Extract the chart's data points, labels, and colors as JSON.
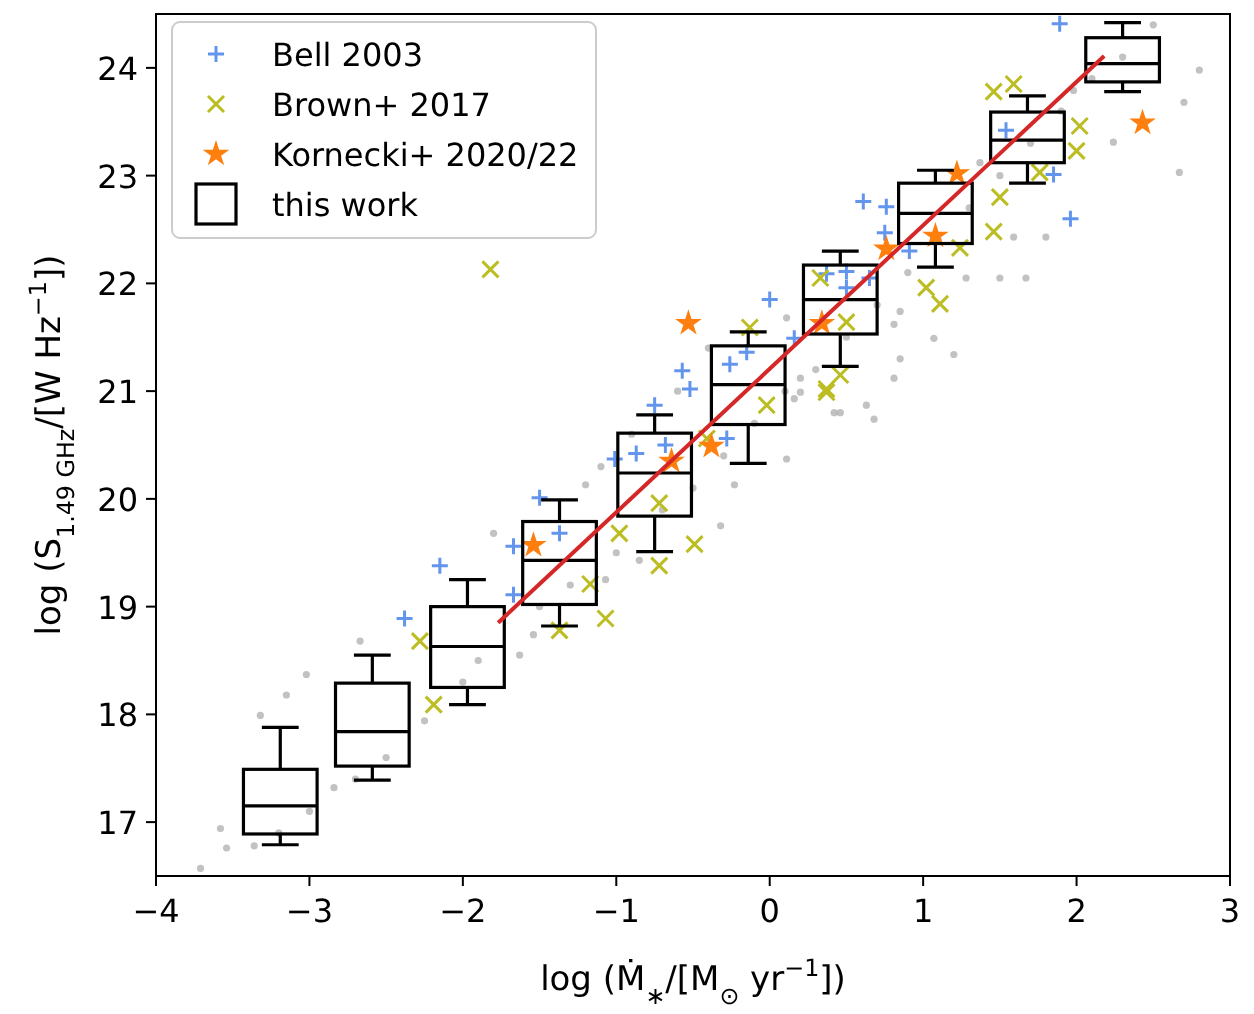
{
  "chart_data": {
    "type": "scatter",
    "xlabel": "log (Ṁ$_{∗}$/[M$_{⊙}$ yr$^{−1}$])",
    "ylabel": "log (S$_{1.49 GHz}$/[W Hz$^{−1}$])",
    "xlim": [
      -4,
      3
    ],
    "ylim": [
      16.5,
      24.5
    ],
    "xticks": [
      {
        "value": -4,
        "label": "−4"
      },
      {
        "value": -3,
        "label": "−3"
      },
      {
        "value": -2,
        "label": "−2"
      },
      {
        "value": -1,
        "label": "−1"
      },
      0,
      1,
      2,
      3
    ],
    "yticks": [
      17,
      18,
      19,
      20,
      21,
      22,
      23,
      24
    ],
    "grid": false,
    "legend": "top left",
    "series": [
      {
        "color": "#999999",
        "marker": "circle",
        "x": [
          -3.71,
          -3.54,
          -3.36,
          -2.84,
          -2.25,
          -1.8,
          -1.63,
          -2.67,
          -3.02,
          -3.32,
          -3.58,
          -3.15,
          0.16,
          0.42,
          0.68,
          0.11,
          -0.23,
          -0.32,
          -0.85,
          -1.07,
          -1.54,
          -1.2,
          0.11,
          0.81,
          0.2,
          0.81,
          0.2,
          0.63,
          0.85,
          1.2,
          1.5,
          1.67,
          1.59,
          1.8,
          2.24,
          2.67,
          2.8,
          2.7,
          1.98,
          1.37,
          0.85,
          0.46,
          1.07,
          1.28,
          -2.0,
          -1.9,
          -1.5,
          -1.3,
          -1.0,
          -0.7,
          -0.5,
          -0.3,
          -0.1,
          0.1,
          0.3,
          0.5,
          0.7,
          0.9,
          1.1,
          1.3,
          1.5,
          1.7,
          1.9,
          2.1,
          2.3,
          2.5,
          -2.5,
          -2.7,
          -3.0,
          -3.2,
          -1.1,
          -0.9,
          -0.6,
          -0.4
        ],
        "values": [
          16.57,
          16.76,
          16.78,
          17.32,
          17.94,
          19.68,
          18.55,
          18.68,
          18.37,
          17.99,
          16.94,
          18.18,
          20.93,
          20.8,
          20.74,
          20.37,
          20.13,
          19.75,
          19.43,
          19.25,
          18.74,
          20.13,
          21.68,
          21.62,
          21.12,
          21.12,
          20.99,
          20.87,
          21.3,
          21.34,
          22.05,
          22.05,
          22.43,
          22.43,
          23.31,
          23.03,
          23.98,
          23.68,
          23.79,
          23.12,
          21.74,
          20.8,
          21.49,
          22.05,
          18.3,
          18.5,
          19.0,
          19.2,
          19.5,
          19.9,
          20.1,
          20.4,
          20.7,
          21.0,
          21.2,
          21.5,
          21.8,
          22.1,
          22.4,
          22.7,
          23.0,
          23.3,
          23.6,
          23.9,
          24.1,
          24.4,
          17.6,
          17.4,
          17.1,
          16.9,
          20.3,
          20.6,
          21.0,
          21.4
        ]
      },
      {
        "name": "Bell 2003",
        "color": "#6495ed",
        "marker": "plus",
        "x": [
          -2.15,
          -2.38,
          -1.37,
          -1.67,
          0.0,
          -0.57,
          -0.75,
          -0.87,
          -0.68,
          -1.5,
          -0.26,
          -0.15,
          0.16,
          0.5,
          0.65,
          -0.52,
          -0.28,
          -1.01,
          -1.67,
          0.61,
          0.76,
          0.75,
          0.37,
          0.5,
          1.54,
          1.96,
          1.85,
          0.91,
          1.89
        ],
        "values": [
          19.38,
          18.89,
          19.68,
          19.56,
          21.85,
          21.19,
          20.87,
          20.42,
          20.5,
          20.01,
          21.25,
          21.36,
          21.49,
          22.11,
          22.05,
          21.02,
          20.56,
          20.37,
          19.11,
          22.76,
          22.71,
          22.47,
          22.09,
          21.96,
          23.42,
          22.6,
          23.01,
          22.3,
          24.41
        ]
      },
      {
        "name": "Brown+ 2017",
        "color": "#bcbd22",
        "marker": "cross",
        "x": [
          -2.19,
          -2.28,
          -1.07,
          -1.37,
          -1.17,
          -0.72,
          -0.98,
          -0.49,
          -0.72,
          -0.02,
          -0.41,
          0.37,
          0.5,
          0.33,
          -0.13,
          1.46,
          1.59,
          2.02,
          2.0,
          1.5,
          1.46,
          1.24,
          1.11,
          1.02,
          0.46,
          0.37,
          1.76,
          -1.82
        ],
        "values": [
          18.09,
          18.68,
          18.89,
          18.78,
          19.21,
          19.96,
          19.68,
          19.58,
          19.38,
          20.87,
          20.56,
          21.02,
          21.64,
          22.05,
          21.59,
          23.78,
          23.85,
          23.46,
          23.23,
          22.8,
          22.48,
          22.33,
          21.81,
          21.96,
          21.15,
          20.99,
          23.03,
          22.13
        ]
      },
      {
        "name": "Kornecki+ 2020/22",
        "color": "#ff7f0e",
        "marker": "star",
        "x": [
          -1.54,
          -0.53,
          -0.64,
          -0.38,
          0.34,
          0.76,
          1.22,
          1.08,
          2.43
        ],
        "values": [
          19.57,
          21.63,
          20.35,
          20.49,
          21.63,
          22.32,
          23.02,
          22.44,
          23.49
        ]
      },
      {
        "type": "box",
        "name": "this work",
        "color": "#000000",
        "x": [
          -3.19,
          -2.59,
          -1.97,
          -1.37,
          -0.75,
          -0.14,
          0.46,
          1.08,
          1.68,
          2.3
        ],
        "boxes": [
          {
            "low": 16.79,
            "q1": 16.89,
            "median": 17.15,
            "q3": 17.49,
            "high": 17.88
          },
          {
            "low": 17.39,
            "q1": 17.52,
            "median": 17.84,
            "q3": 18.29,
            "high": 18.55
          },
          {
            "low": 18.09,
            "q1": 18.25,
            "median": 18.63,
            "q3": 19.0,
            "high": 19.25
          },
          {
            "low": 18.82,
            "q1": 19.02,
            "median": 19.43,
            "q3": 19.79,
            "high": 19.99
          },
          {
            "low": 19.51,
            "q1": 19.84,
            "median": 20.24,
            "q3": 20.61,
            "high": 20.78
          },
          {
            "low": 20.33,
            "q1": 20.69,
            "median": 21.06,
            "q3": 21.42,
            "high": 21.55
          },
          {
            "low": 21.23,
            "q1": 21.53,
            "median": 21.85,
            "q3": 22.17,
            "high": 22.3
          },
          {
            "low": 22.15,
            "q1": 22.37,
            "median": 22.65,
            "q3": 22.93,
            "high": 23.05
          },
          {
            "low": 22.93,
            "q1": 23.12,
            "median": 23.33,
            "q3": 23.59,
            "high": 23.74
          },
          {
            "low": 23.78,
            "q1": 23.87,
            "median": 24.04,
            "q3": 24.28,
            "high": 24.42
          }
        ]
      },
      {
        "type": "line",
        "color": "#d62728",
        "x": [
          -1.77,
          2.18
        ],
        "values": [
          18.85,
          24.11
        ]
      }
    ]
  }
}
